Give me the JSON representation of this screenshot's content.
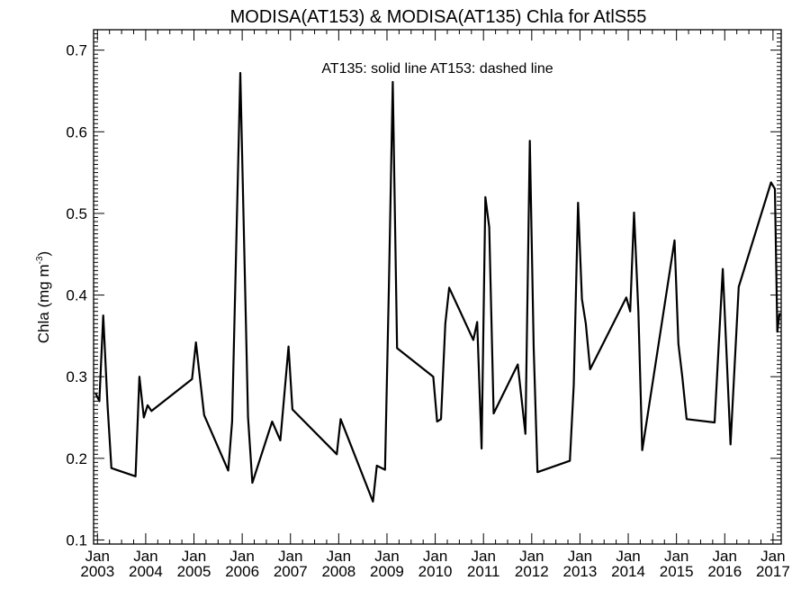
{
  "chart_data": {
    "type": "line",
    "title": "MODISA(AT153) & MODISA(AT135)  Chla for AtlS55",
    "annotation": "AT135: solid line   AT153: dashed line",
    "ylabel": {
      "main": "Chla (mg m",
      "sup": "-3",
      "close": ")"
    },
    "xlabel": "",
    "xlim": [
      2002.92,
      2017.17
    ],
    "ylim": [
      0.095,
      0.725
    ],
    "yticks": [
      0.1,
      0.2,
      0.3,
      0.4,
      0.5,
      0.6,
      0.7
    ],
    "ytick_labels": [
      "0.1",
      "0.2",
      "0.3",
      "0.4",
      "0.5",
      "0.6",
      "0.7"
    ],
    "xticks": [
      {
        "value": 2003,
        "month": "Jan",
        "year": "2003"
      },
      {
        "value": 2004,
        "month": "Jan",
        "year": "2004"
      },
      {
        "value": 2005,
        "month": "Jan",
        "year": "2005"
      },
      {
        "value": 2006,
        "month": "Jan",
        "year": "2006"
      },
      {
        "value": 2007,
        "month": "Jan",
        "year": "2007"
      },
      {
        "value": 2008,
        "month": "Jan",
        "year": "2008"
      },
      {
        "value": 2009,
        "month": "Jan",
        "year": "2009"
      },
      {
        "value": 2010,
        "month": "Jan",
        "year": "2010"
      },
      {
        "value": 2011,
        "month": "Jan",
        "year": "2011"
      },
      {
        "value": 2012,
        "month": "Jan",
        "year": "2012"
      },
      {
        "value": 2013,
        "month": "Jan",
        "year": "2013"
      },
      {
        "value": 2014,
        "month": "Jan",
        "year": "2014"
      },
      {
        "value": 2015,
        "month": "Jan",
        "year": "2015"
      },
      {
        "value": 2016,
        "month": "Jan",
        "year": "2016"
      },
      {
        "value": 2017,
        "month": "Jan",
        "year": "2017"
      }
    ],
    "grid": false,
    "series": [
      {
        "name": "AT135",
        "style": "solid",
        "color": "#000000",
        "x": [
          2002.96,
          2003.04,
          2003.12,
          2003.21,
          2003.29,
          2003.79,
          2003.87,
          2003.96,
          2004.04,
          2004.12,
          2004.96,
          2005.04,
          2005.21,
          2005.71,
          2005.79,
          2005.96,
          2006.12,
          2006.21,
          2006.62,
          2006.79,
          2006.96,
          2007.04,
          2007.96,
          2008.04,
          2008.71,
          2008.79,
          2008.96,
          2009.04,
          2009.12,
          2009.21,
          2009.96,
          2010.04,
          2010.12,
          2010.21,
          2010.29,
          2010.79,
          2010.87,
          2010.96,
          2011.04,
          2011.12,
          2011.21,
          2011.71,
          2011.87,
          2011.96,
          2012.04,
          2012.12,
          2012.79,
          2012.87,
          2012.96,
          2013.04,
          2013.12,
          2013.21,
          2013.96,
          2014.04,
          2014.12,
          2014.21,
          2014.29,
          2014.96,
          2015.04,
          2015.12,
          2015.21,
          2015.79,
          2015.96,
          2016.04,
          2016.12,
          2016.29,
          2016.96,
          2017.04,
          2017.09,
          2017.12,
          2017.14
        ],
        "y": [
          0.28,
          0.27,
          0.375,
          0.265,
          0.188,
          0.178,
          0.3,
          0.25,
          0.265,
          0.258,
          0.297,
          0.342,
          0.253,
          0.185,
          0.245,
          0.672,
          0.25,
          0.17,
          0.245,
          0.222,
          0.337,
          0.26,
          0.205,
          0.248,
          0.147,
          0.191,
          0.186,
          0.41,
          0.661,
          0.335,
          0.3,
          0.245,
          0.248,
          0.365,
          0.409,
          0.345,
          0.367,
          0.212,
          0.52,
          0.483,
          0.255,
          0.315,
          0.23,
          0.589,
          0.335,
          0.183,
          0.197,
          0.29,
          0.513,
          0.395,
          0.365,
          0.309,
          0.397,
          0.38,
          0.501,
          0.38,
          0.21,
          0.467,
          0.34,
          0.3,
          0.248,
          0.244,
          0.432,
          0.325,
          0.217,
          0.41,
          0.538,
          0.53,
          0.355,
          0.37,
          0.378
        ]
      }
    ]
  }
}
